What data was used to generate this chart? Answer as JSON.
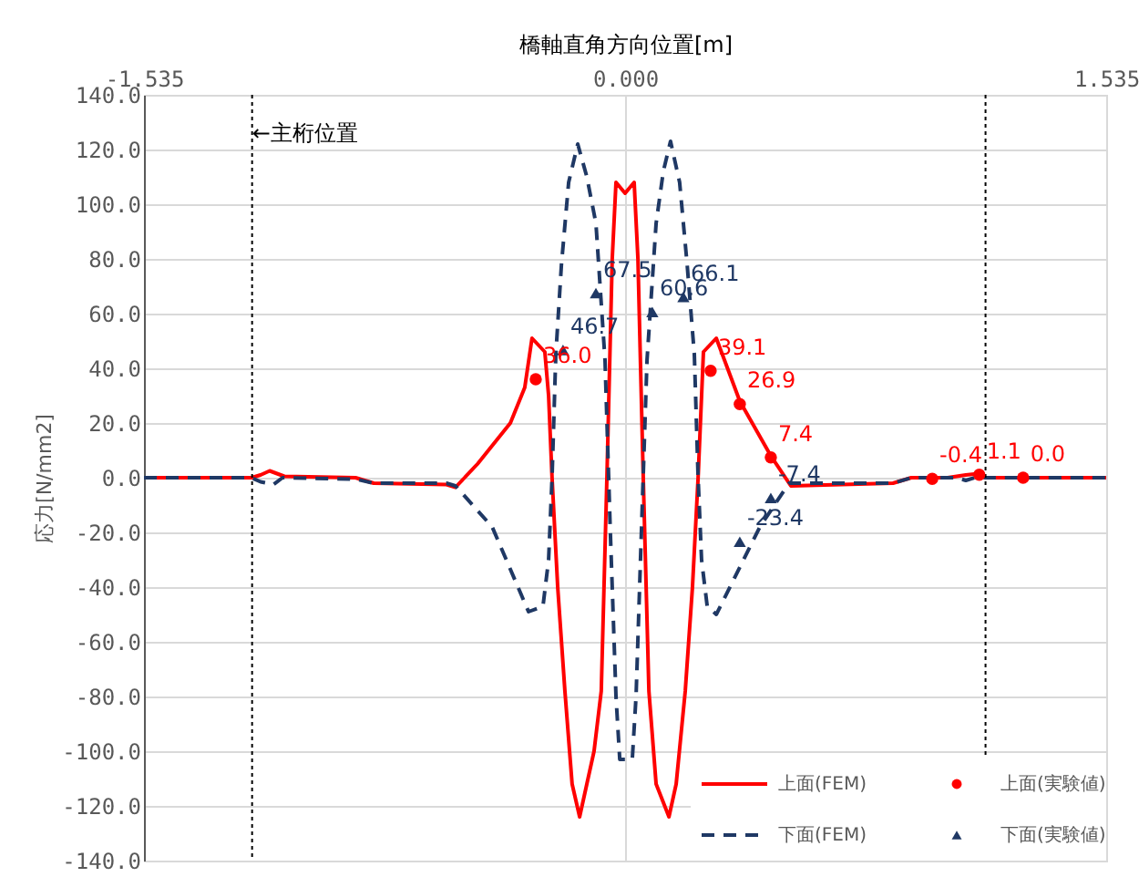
{
  "chart_data": {
    "type": "line",
    "xlabel": "橋軸直角方向位置[m]",
    "ylabel": "応力[N/mm2]",
    "xlim": [
      -1.535,
      1.535
    ],
    "xticks": [
      -1.535,
      {
        "value": 0,
        "label": "0.000"
      },
      1.535
    ],
    "ylim": [
      -140,
      140
    ],
    "yticks": [
      {
        "value": -140,
        "label": "-140.0"
      },
      {
        "value": -120,
        "label": "-120.0"
      },
      {
        "value": -100,
        "label": "-100.0"
      },
      {
        "value": -80,
        "label": "-80.0"
      },
      {
        "value": -60,
        "label": "-60.0"
      },
      {
        "value": -40,
        "label": "-40.0"
      },
      {
        "value": -20,
        "label": "-20.0"
      },
      {
        "value": 0,
        "label": "0.0"
      },
      {
        "value": 20,
        "label": "20.0"
      },
      {
        "value": 40,
        "label": "40.0"
      },
      {
        "value": 60,
        "label": "60.0"
      },
      {
        "value": 80,
        "label": "80.0"
      },
      {
        "value": 100,
        "label": "100.0"
      },
      {
        "value": 120,
        "label": "120.0"
      },
      {
        "value": 140,
        "label": "140.0"
      }
    ],
    "grid": true,
    "legend": "bottom right",
    "ref_lines": [
      {
        "axis": "x",
        "value": -1.19,
        "color": "#000000",
        "line_style": "dotted",
        "label": "←主桁位置"
      },
      {
        "axis": "x",
        "value": 1.15,
        "color": "#000000",
        "line_style": "dotted"
      }
    ],
    "series": [
      {
        "name": "上面(FEM)",
        "type": "line",
        "color": "#ff0000",
        "line_style": "solid",
        "marker": "none",
        "x": [
          -1.535,
          -1.192,
          -1.163,
          -1.134,
          -1.087,
          -0.86,
          -0.802,
          -0.57,
          -0.541,
          -0.471,
          -0.366,
          -0.32,
          -0.297,
          -0.256,
          -0.244,
          -0.233,
          -0.215,
          -0.192,
          -0.169,
          -0.145,
          -0.122,
          -0.099,
          -0.076,
          -0.058,
          -0.041,
          -0.029,
          0,
          0.029,
          0.041,
          0.058,
          0.076,
          0.099,
          0.14,
          0.163,
          0.192,
          0.215,
          0.233,
          0.25,
          0.291,
          0.366,
          0.465,
          0.529,
          0.855,
          0.913,
          1.029,
          1.087,
          1.128,
          1.151,
          1.535
        ],
        "values": [
          0,
          0,
          1,
          2.5,
          0.5,
          0,
          -2,
          -2.5,
          -3.5,
          5,
          20,
          33,
          51,
          46,
          30,
          0,
          -40,
          -78,
          -112,
          -124,
          -112,
          -100,
          -78,
          0,
          80,
          108,
          104,
          108,
          80,
          0,
          -78,
          -112,
          -124,
          -112,
          -78,
          -40,
          0,
          46,
          51,
          28,
          8,
          -3,
          -2,
          0,
          0,
          1,
          1.5,
          0,
          0
        ]
      },
      {
        "name": "下面(FEM)",
        "type": "line",
        "color": "#1f3864",
        "line_style": "dashed",
        "marker": "none",
        "x": [
          -1.535,
          -1.192,
          -1.163,
          -1.122,
          -1.093,
          -0.86,
          -0.802,
          -0.57,
          -0.541,
          -0.424,
          -0.308,
          -0.262,
          -0.244,
          -0.233,
          -0.221,
          -0.203,
          -0.18,
          -0.151,
          -0.122,
          -0.093,
          -0.064,
          -0.047,
          -0.029,
          -0.017,
          0.023,
          0.035,
          0.052,
          0.07,
          0.099,
          0.122,
          0.145,
          0.174,
          0.198,
          0.221,
          0.233,
          0.244,
          0.262,
          0.291,
          0.43,
          0.523,
          0.855,
          0.913,
          1.058,
          1.087,
          1.128,
          1.151,
          1.535
        ],
        "values": [
          0,
          0,
          -1.5,
          -2.5,
          0,
          -0.5,
          -2,
          -2,
          -3,
          -18,
          -49,
          -47,
          -30,
          0,
          45,
          78,
          108,
          122,
          110,
          93,
          43,
          -20,
          -80,
          -103,
          -103,
          -80,
          -20,
          43,
          93,
          112,
          123,
          108,
          78,
          45,
          0,
          -30,
          -47,
          -50,
          -18,
          -2,
          -2,
          0,
          0,
          -1,
          0.5,
          0,
          0
        ]
      },
      {
        "name": "上面(実験値)",
        "type": "scatter",
        "color": "#ff0000",
        "marker": "circle",
        "x": [
          -0.285,
          0.273,
          0.366,
          0.465,
          0.98,
          1.13,
          1.27
        ],
        "values": [
          36.0,
          39.1,
          26.9,
          7.4,
          -0.4,
          1.1,
          0.0
        ],
        "value_labels": [
          "36.0",
          "39.1",
          "26.9",
          "7.4",
          "-0.4",
          "1.1",
          "0.0"
        ]
      },
      {
        "name": "下面(実験値)",
        "type": "scatter",
        "color": "#1f3864",
        "marker": "triangle",
        "x": [
          -0.198,
          -0.093,
          0.087,
          0.186,
          0.366,
          0.465
        ],
        "values": [
          46.7,
          67.5,
          60.6,
          66.1,
          -23.4,
          -7.4
        ],
        "value_labels": [
          "46.7",
          "67.5",
          "60.6",
          "66.1",
          "-23.4",
          "-7.4"
        ]
      }
    ]
  }
}
